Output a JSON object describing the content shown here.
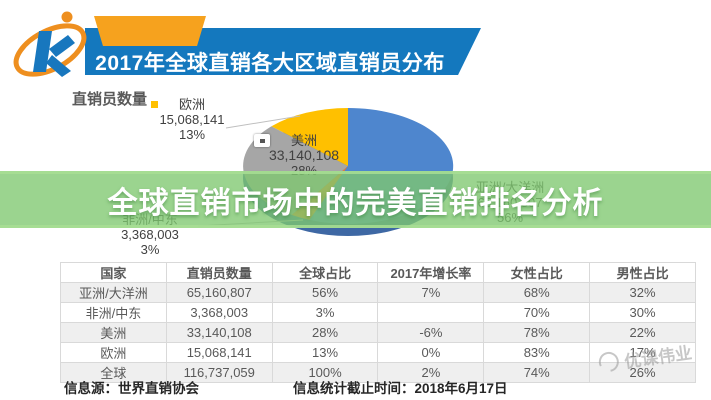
{
  "header": {
    "title": "2017年全球直销各大区域直销员分布"
  },
  "overlay": {
    "title": "全球直销市场中的完美直销排名分析"
  },
  "chart_data": {
    "type": "pie",
    "title": "2017年全球直销各大区域直销员分布",
    "series_label": "直销员数量",
    "categories": [
      "亚洲/大洋洲",
      "非洲/中东",
      "美洲",
      "欧洲"
    ],
    "values": [
      65160807,
      3368003,
      33140108,
      15068141
    ],
    "value_labels": [
      "65,160,807",
      "3,368,003",
      "33,140,108",
      "15,068,141"
    ],
    "percentages": [
      56,
      3,
      28,
      13
    ],
    "percent_labels": [
      "56%",
      "3%",
      "28%",
      "13%"
    ],
    "colors": [
      "#4e86ce",
      "#ed7d31",
      "#a6a6a6",
      "#ffc000"
    ],
    "rim_color": "#3e68a4",
    "total": {
      "label": "全球",
      "value": 116737059,
      "percent": 100
    },
    "style": "3d-pie",
    "labels_shown": true,
    "legend_position": "none"
  },
  "table": {
    "headers": [
      "国家",
      "直销员数量",
      "全球占比",
      "2017年增长率",
      "女性占比",
      "男性占比"
    ],
    "rows": [
      [
        "亚洲/大洋洲",
        "65,160,807",
        "56%",
        "7%",
        "68%",
        "32%"
      ],
      [
        "非洲/中东",
        "3,368,003",
        "3%",
        "",
        "70%",
        "30%"
      ],
      [
        "美洲",
        "33,140,108",
        "28%",
        "-6%",
        "78%",
        "22%"
      ],
      [
        "欧洲",
        "15,068,141",
        "13%",
        "0%",
        "83%",
        "17%"
      ],
      [
        "全球",
        "116,737,059",
        "100%",
        "2%",
        "74%",
        "26%"
      ]
    ]
  },
  "footer": {
    "source": "信息源：世界直销协会",
    "cutoff": "信息统计截止时间：2018年6月17日"
  },
  "watermark": "优课伟业"
}
